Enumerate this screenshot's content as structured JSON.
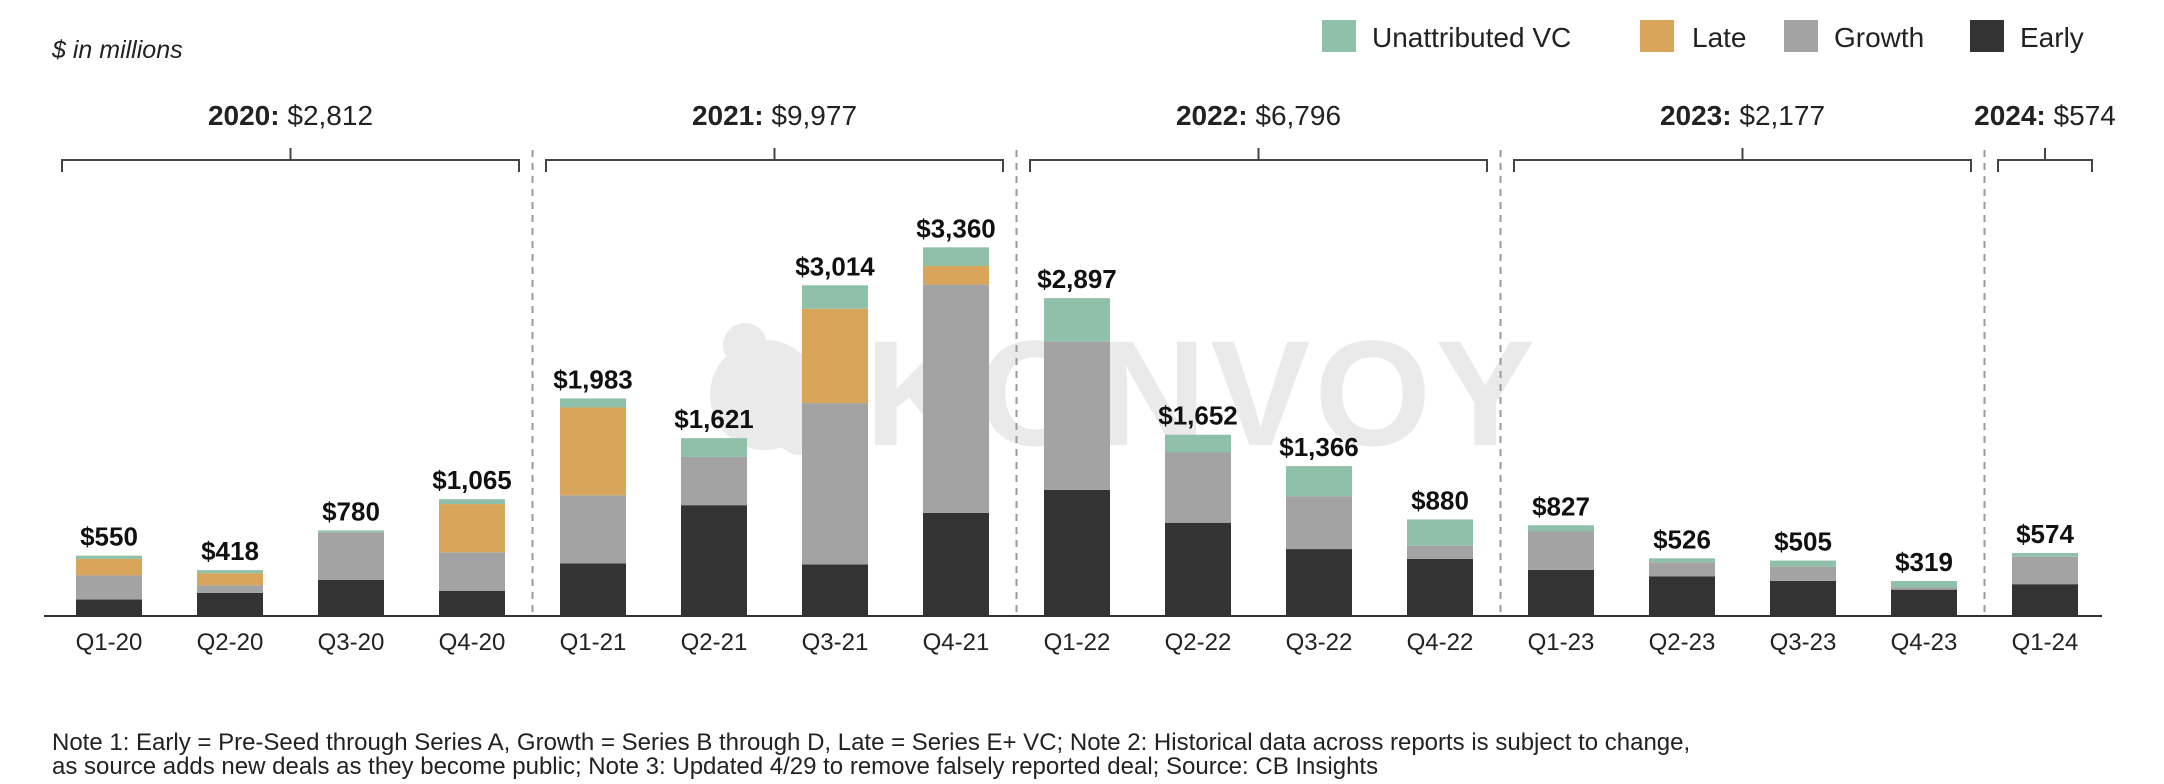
{
  "watermark": "KONVOY",
  "chart_data": {
    "type": "bar",
    "stacked": true,
    "unit_label": "$ in millions",
    "categories": [
      "Q1-20",
      "Q2-20",
      "Q3-20",
      "Q4-20",
      "Q1-21",
      "Q2-21",
      "Q3-21",
      "Q4-21",
      "Q1-22",
      "Q2-22",
      "Q3-22",
      "Q4-22",
      "Q1-23",
      "Q2-23",
      "Q3-23",
      "Q4-23",
      "Q1-24"
    ],
    "totals": [
      550,
      418,
      780,
      1065,
      1983,
      1621,
      3014,
      3360,
      2897,
      1652,
      1366,
      880,
      827,
      526,
      505,
      319,
      574
    ],
    "total_labels": [
      "$550",
      "$418",
      "$780",
      "$1,065",
      "$1,983",
      "$1,621",
      "$3,014",
      "$3,360",
      "$2,897",
      "$1,652",
      "$1,366",
      "$880",
      "$827",
      "$526",
      "$505",
      "$319",
      "$574"
    ],
    "series": [
      {
        "name": "Early",
        "color": "#333333",
        "values": [
          150,
          210,
          330,
          230,
          480,
          1010,
          470,
          940,
          1150,
          850,
          610,
          520,
          420,
          360,
          320,
          240,
          290
        ]
      },
      {
        "name": "Growth",
        "color": "#a3a3a3",
        "values": [
          220,
          70,
          430,
          350,
          620,
          440,
          1470,
          2080,
          1350,
          640,
          480,
          120,
          350,
          130,
          130,
          20,
          250
        ]
      },
      {
        "name": "Late",
        "color": "#d9a55a",
        "values": [
          150,
          110,
          0,
          440,
          800,
          0,
          860,
          170,
          0,
          0,
          0,
          0,
          0,
          0,
          0,
          0,
          0
        ]
      },
      {
        "name": "Unattributed VC",
        "color": "#8fc0a9",
        "values": [
          30,
          28,
          20,
          45,
          83,
          171,
          214,
          170,
          397,
          162,
          276,
          240,
          57,
          36,
          55,
          59,
          34
        ]
      }
    ],
    "legend_order": [
      "Unattributed VC",
      "Late",
      "Growth",
      "Early"
    ],
    "legend_position": "top-right",
    "ylim": [
      0,
      3700
    ],
    "grid": false,
    "year_groups": [
      {
        "year": "2020:",
        "total": "$2,812",
        "first": 0,
        "last": 3
      },
      {
        "year": "2021:",
        "total": "$9,977",
        "first": 4,
        "last": 7
      },
      {
        "year": "2022:",
        "total": "$6,796",
        "first": 8,
        "last": 11
      },
      {
        "year": "2023:",
        "total": "$2,177",
        "first": 12,
        "last": 15
      },
      {
        "year": "2024:",
        "total": "$574",
        "first": 16,
        "last": 16
      }
    ]
  },
  "notes": {
    "line1": "Note 1: Early = Pre-Seed through Series A, Growth = Series B through D, Late = Series E+ VC; Note 2: Historical data across reports is subject to change,",
    "line2": "as source adds new deals as they become public; Note 3: Updated 4/29 to remove falsely reported deal; Source: CB Insights"
  }
}
